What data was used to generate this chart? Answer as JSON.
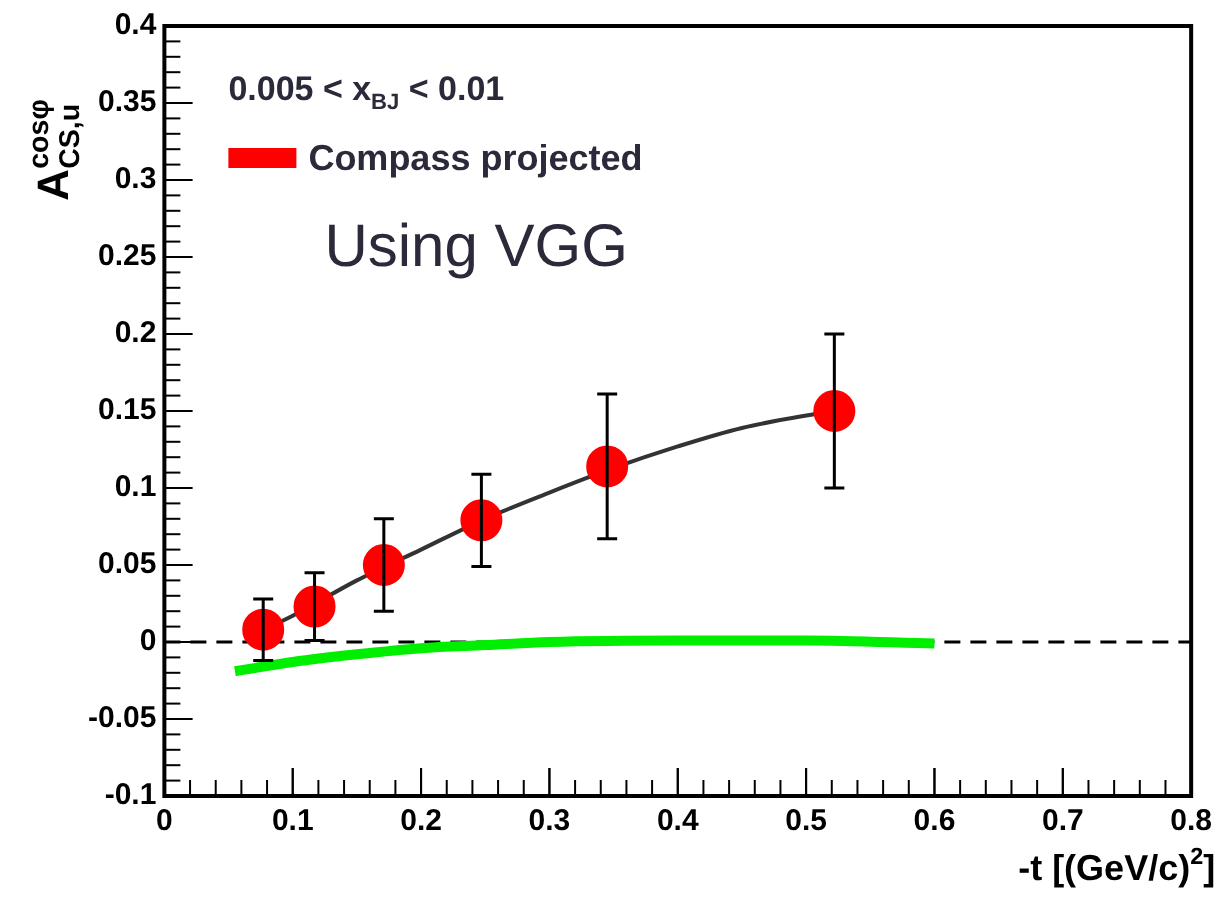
{
  "chart_data": {
    "type": "scatter",
    "xlabel": "-t [(GeV/c)$^{2}$]",
    "ylabel": "A$^{cosφ}$$_{CS,u}$",
    "annotations": [
      "0.005 < x$_{BJ}$ < 0.01",
      "Using VGG"
    ],
    "xlim": [
      0,
      0.8
    ],
    "xticks": [
      0,
      0.1,
      0.2,
      0.3,
      0.4,
      0.5,
      0.6,
      0.7,
      0.8
    ],
    "ylim": [
      -0.1,
      0.4
    ],
    "yticks": [
      -0.1,
      -0.05,
      0,
      0.05,
      0.1,
      0.15,
      0.2,
      0.25,
      0.3,
      0.35,
      0.4
    ],
    "legend": "top left",
    "marker": "circle",
    "grid": false,
    "ref_lines": [
      {
        "axis": "y",
        "value": 0,
        "color": "#000000",
        "line_style": "dashed"
      }
    ],
    "series": [
      {
        "type": "line",
        "color": "#333333",
        "line_style": "solid",
        "marker": "none",
        "x": [
          0.07,
          0.1,
          0.15,
          0.2,
          0.25,
          0.3,
          0.35,
          0.4,
          0.45,
          0.52
        ],
        "values": [
          0.005,
          0.017,
          0.04,
          0.06,
          0.08,
          0.097,
          0.113,
          0.127,
          0.139,
          0.15
        ]
      },
      {
        "type": "line",
        "color": "#00ee00",
        "line_style": "solid",
        "marker": "none",
        "x": [
          0.055,
          0.1,
          0.15,
          0.2,
          0.25,
          0.3,
          0.4,
          0.5,
          0.6
        ],
        "values": [
          -0.019,
          -0.013,
          -0.008,
          -0.004,
          -0.002,
          0,
          0.001,
          0.001,
          -0.001
        ]
      },
      {
        "name": "Compass projected",
        "color": "#ff0000",
        "x": [
          0.077,
          0.117,
          0.171,
          0.247,
          0.345,
          0.522
        ],
        "values": [
          0.008,
          0.023,
          0.05,
          0.079,
          0.114,
          0.15
        ],
        "errors": [
          0.02,
          0.022,
          0.03,
          0.03,
          0.047,
          0.05
        ]
      }
    ]
  }
}
